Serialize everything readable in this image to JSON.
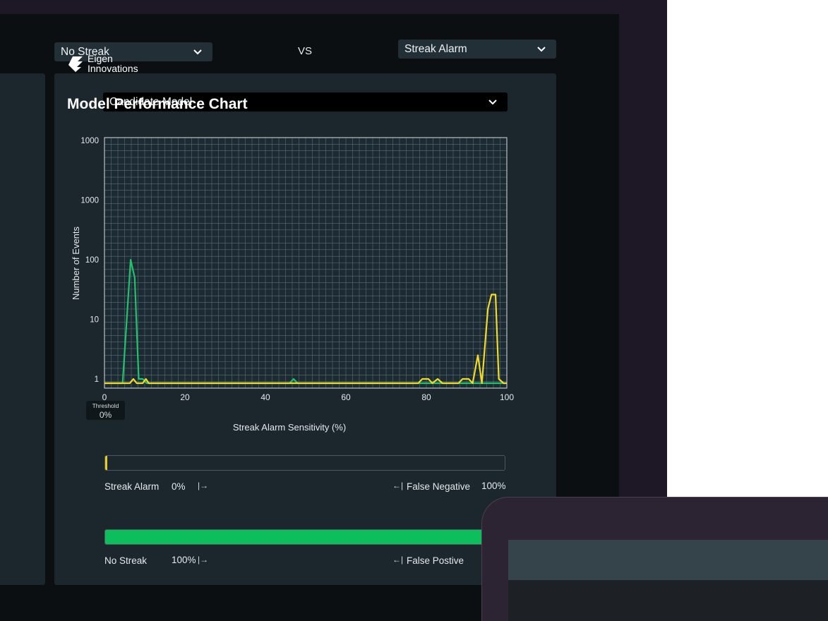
{
  "compare": {
    "left_selection": "No Streak",
    "right_selection": "Streak Alarm",
    "vs_label": "VS"
  },
  "model_select": {
    "selected": "Candidate Model"
  },
  "chart_data": {
    "type": "line",
    "xlabel": "Streak Alarm Sensitivity (%)",
    "ylabel": "Number of Events",
    "x_ticks": [
      "0",
      "20",
      "40",
      "60",
      "80",
      "100"
    ],
    "y_ticks": [
      "1",
      "10",
      "100",
      "1000",
      "1000"
    ],
    "xlim": [
      0,
      100
    ],
    "y_scale": "log",
    "grid": true,
    "series": [
      {
        "color": "#20c26b",
        "points": [
          [
            0,
            0.85
          ],
          [
            4.5,
            0.85
          ],
          [
            6.5,
            100
          ],
          [
            7.5,
            50
          ],
          [
            8.5,
            1
          ],
          [
            9.5,
            1
          ],
          [
            10.5,
            0.85
          ],
          [
            46,
            0.85
          ],
          [
            47,
            1
          ],
          [
            48,
            0.85
          ],
          [
            100,
            0.85
          ]
        ]
      },
      {
        "color": "#f0dc27",
        "points": [
          [
            0,
            0.85
          ],
          [
            6.3,
            0.85
          ],
          [
            7.2,
            1
          ],
          [
            8,
            0.85
          ],
          [
            9.5,
            0.85
          ],
          [
            10.3,
            1
          ],
          [
            11,
            0.85
          ],
          [
            78,
            0.85
          ],
          [
            79,
            1
          ],
          [
            80.5,
            1
          ],
          [
            81.5,
            0.85
          ],
          [
            82.8,
            1
          ],
          [
            84,
            0.85
          ],
          [
            88,
            0.85
          ],
          [
            89,
            1
          ],
          [
            90.5,
            1
          ],
          [
            91.5,
            0.85
          ],
          [
            92.8,
            2.5
          ],
          [
            93.8,
            0.85
          ],
          [
            95.3,
            15
          ],
          [
            96.2,
            26
          ],
          [
            97.2,
            26
          ],
          [
            98,
            1
          ],
          [
            99.2,
            0.85
          ],
          [
            100,
            0.85
          ]
        ]
      }
    ]
  },
  "threshold": {
    "label": "Threshold",
    "value": "0%"
  },
  "meters": [
    {
      "left_label": "Streak Alarm",
      "left_value": "0%",
      "right_label": "False Negative",
      "right_value": "100%",
      "fill_fraction": 0.005,
      "fill_color": "#e6cc1f"
    },
    {
      "left_label": "No Streak",
      "left_value": "100%",
      "right_label": "False Postive",
      "right_value": "",
      "fill_fraction": 1.0,
      "fill_color": "#0dbf5c"
    }
  ],
  "overlay": {
    "logo_line1": "Eigen",
    "logo_line2": "Innovations",
    "title": "Model Performance Chart"
  },
  "icons": {
    "dropdown": "chevron-down-icon",
    "increase": "arrow-right-to-bar-icon",
    "decrease": "arrow-left-to-bar-icon",
    "logo": "eigen-logo-icon"
  }
}
